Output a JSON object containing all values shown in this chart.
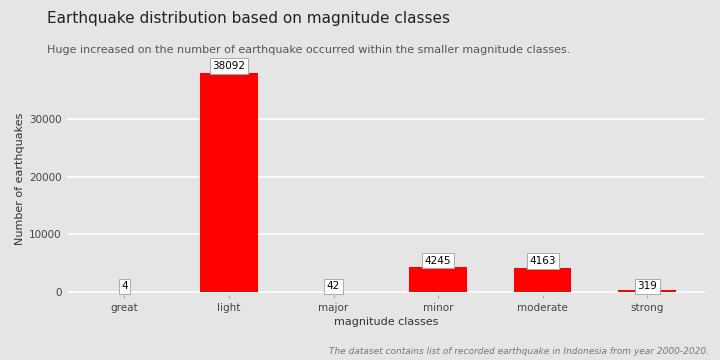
{
  "categories": [
    "great",
    "light",
    "major",
    "minor",
    "moderate",
    "strong"
  ],
  "values": [
    4,
    38092,
    42,
    4245,
    4163,
    319
  ],
  "bar_color": "#ff0000",
  "bg_color": "#e5e5e5",
  "title": "Earthquake distribution based on magnitude classes",
  "subtitle": "Huge increased on the number of earthquake occurred within the smaller magnitude classes.",
  "xlabel": "magnitude classes",
  "ylabel": "Number of earthquakes",
  "footnote": "The dataset contains list of recorded earthquake in Indonesia from year 2000-2020.",
  "ylim": [
    -600,
    40000
  ],
  "yticks": [
    0,
    10000,
    20000,
    30000
  ],
  "title_fontsize": 11,
  "subtitle_fontsize": 8,
  "axis_label_fontsize": 8,
  "tick_fontsize": 7.5,
  "footnote_fontsize": 6.5,
  "bar_label_fontsize": 7.5
}
